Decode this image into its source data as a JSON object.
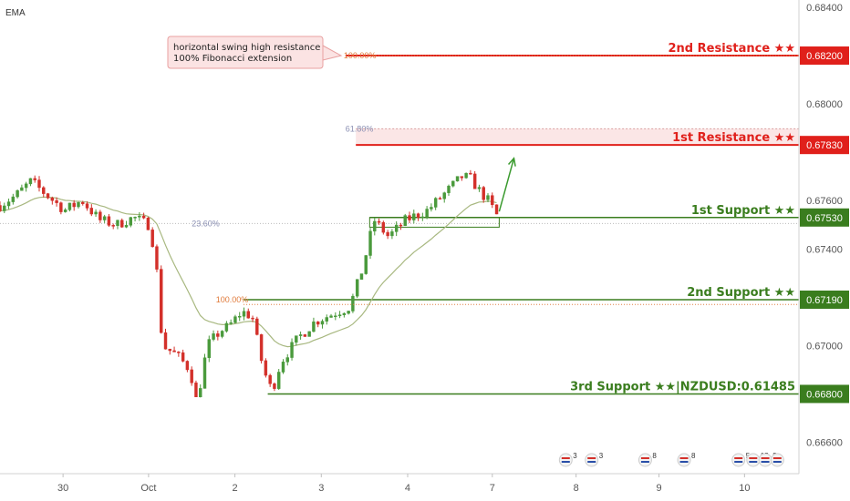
{
  "indicator_label": "EMA",
  "annotation": {
    "line1": "horizontal swing high resistance",
    "line2": "100% Fibonacci extension"
  },
  "colors": {
    "resistance": "#e0201b",
    "support": "#3a7d1e",
    "fib": "#e07a3a",
    "fib_grey": "#8a8fb3",
    "up_candle": "#4a9a3c",
    "down_candle": "#d3302a",
    "ema": "#a8b880",
    "zone": "#fbe6e6",
    "annotation_bg": "#fbe3e3",
    "arrow": "#3a9a2e"
  },
  "event_icons": [
    {
      "day": 6.55,
      "badge": "3"
    },
    {
      "day": 6.85,
      "badge": "3"
    },
    {
      "day": 7.47,
      "badge": "8"
    },
    {
      "day": 7.92,
      "badge": "8"
    },
    {
      "day": 8.55,
      "badge": "5"
    },
    {
      "day": 8.72,
      "badge": "15"
    },
    {
      "day": 8.86,
      "badge": "2"
    },
    {
      "day": 9.0,
      "badge": ""
    }
  ],
  "chart_data": {
    "type": "candlestick",
    "symbol_note": "NZDUSD:0.61485",
    "y_ticks": [
      "0.68400",
      "0.68000",
      "0.67600",
      "0.67400",
      "0.67000",
      "0.66600"
    ],
    "ylim": [
      0.6647,
      0.6843
    ],
    "x_ticks": [
      {
        "label": "30",
        "day": 0.73
      },
      {
        "label": "Oct",
        "day": 1.72
      },
      {
        "label": "2",
        "day": 2.72
      },
      {
        "label": "3",
        "day": 3.72
      },
      {
        "label": "4",
        "day": 4.72
      },
      {
        "label": "7",
        "day": 5.7
      },
      {
        "label": "8",
        "day": 6.67
      },
      {
        "label": "9",
        "day": 7.63
      },
      {
        "label": "10",
        "day": 8.62
      }
    ],
    "xlim": [
      0,
      9.25
    ],
    "levels": [
      {
        "name": "2nd Resistance ★★",
        "price": 0.682,
        "price_label": "0.68200",
        "kind": "resistance",
        "from_day": 4.0
      },
      {
        "name": "1st Resistance ★★",
        "price": 0.6783,
        "price_label": "0.67830",
        "kind": "resistance",
        "from_day": 4.12
      },
      {
        "name": "1st Support ★★",
        "price": 0.6753,
        "price_label": "0.67530",
        "kind": "support",
        "from_day": 4.28
      },
      {
        "name": "2nd Support ★★",
        "price": 0.6719,
        "price_label": "0.67190",
        "kind": "support",
        "from_day": 2.82
      },
      {
        "name": "3rd Support ★★|NZDUSD:0.61485",
        "price": 0.668,
        "price_label": "0.66800",
        "kind": "support",
        "from_day": 3.1
      }
    ],
    "fib_labels": [
      {
        "text": "100.00%",
        "price": 0.682,
        "day": 3.98,
        "color": "fib"
      },
      {
        "text": "61.80%",
        "price": 0.67897,
        "day": 4.0,
        "color": "fib_grey"
      },
      {
        "text": "23.60%",
        "price": 0.67505,
        "day": 2.22,
        "color": "fib_grey"
      },
      {
        "text": "100.00%",
        "price": 0.6719,
        "day": 2.5,
        "color": "fib"
      }
    ],
    "resistance_zone": {
      "from_day": 4.12,
      "top": 0.67897,
      "bottom": 0.6783
    },
    "arrow": {
      "from_day": 5.78,
      "from_price": 0.67555,
      "to_day": 5.95,
      "to_price": 0.67775
    },
    "anchors": [
      [
        0.0,
        0.6758
      ],
      [
        0.18,
        0.6762
      ],
      [
        0.36,
        0.6768
      ],
      [
        0.55,
        0.6762
      ],
      [
        0.75,
        0.6756
      ],
      [
        0.95,
        0.676
      ],
      [
        1.15,
        0.6752
      ],
      [
        1.35,
        0.675
      ],
      [
        1.55,
        0.6753
      ],
      [
        1.72,
        0.675
      ],
      [
        1.8,
        0.6738
      ],
      [
        1.88,
        0.67
      ],
      [
        2.05,
        0.6696
      ],
      [
        2.2,
        0.669
      ],
      [
        2.28,
        0.6676
      ],
      [
        2.4,
        0.67
      ],
      [
        2.55,
        0.6706
      ],
      [
        2.65,
        0.6708
      ],
      [
        2.8,
        0.6714
      ],
      [
        2.92,
        0.6712
      ],
      [
        3.05,
        0.669
      ],
      [
        3.15,
        0.6681
      ],
      [
        3.25,
        0.6693
      ],
      [
        3.45,
        0.6703
      ],
      [
        3.65,
        0.671
      ],
      [
        3.85,
        0.6713
      ],
      [
        4.05,
        0.6716
      ],
      [
        4.2,
        0.6732
      ],
      [
        4.33,
        0.6752
      ],
      [
        4.5,
        0.6745
      ],
      [
        4.7,
        0.6752
      ],
      [
        4.95,
        0.6756
      ],
      [
        5.15,
        0.6763
      ],
      [
        5.35,
        0.677
      ],
      [
        5.45,
        0.6769
      ],
      [
        5.55,
        0.6764
      ],
      [
        5.65,
        0.676
      ],
      [
        5.75,
        0.6754
      ]
    ],
    "num_candles": 115,
    "ema_period": 20
  }
}
